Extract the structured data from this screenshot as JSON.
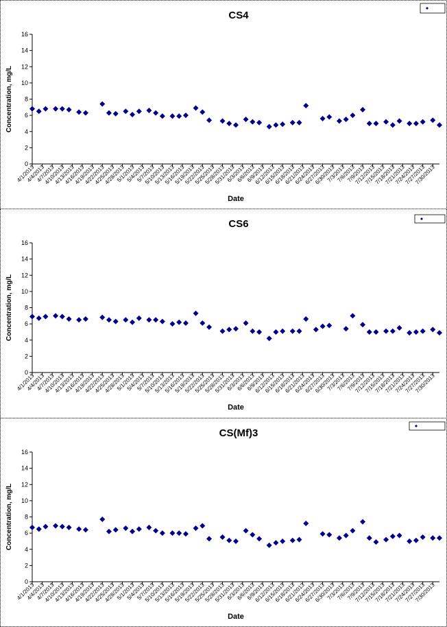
{
  "chart_data": [
    {
      "type": "scatter",
      "title": "CS4",
      "xlabel": "Date",
      "ylabel": "Concentration, mg/L",
      "ylim": [
        0,
        16
      ],
      "yticks": [
        0,
        2,
        4,
        6,
        8,
        10,
        12,
        14,
        16
      ],
      "xlim": [
        "2013-04-01",
        "2013-08-01"
      ],
      "xticks": [
        "4/1/2013",
        "4/4/2013",
        "4/7/2013",
        "4/10/2013",
        "4/13/2013",
        "4/16/2013",
        "4/19/2013",
        "4/22/2013",
        "4/25/2013",
        "4/28/2013",
        "5/1/2013",
        "5/4/2013",
        "5/7/2013",
        "5/10/2013",
        "5/13/2013",
        "5/16/2013",
        "5/19/2013",
        "5/22/2013",
        "5/25/2013",
        "5/28/2013",
        "5/31/2013",
        "6/3/2013",
        "6/6/2013",
        "6/9/2013",
        "6/12/2013",
        "6/15/2013",
        "6/18/2013",
        "6/21/2013",
        "6/24/2013",
        "6/27/2013",
        "6/30/2013",
        "7/3/2013",
        "7/6/2013",
        "7/9/2013",
        "7/12/2013",
        "7/15/2013",
        "7/18/2013",
        "7/21/2013",
        "7/24/2013",
        "7/27/2013",
        "7/30/2013"
      ],
      "legend": {
        "label": "",
        "placement": "top-right"
      },
      "marker_color": "#00008B",
      "grid": false,
      "series": [
        {
          "x": [
            "2013-04-01",
            "2013-04-03",
            "2013-04-05",
            "2013-04-08",
            "2013-04-10",
            "2013-04-12",
            "2013-04-15",
            "2013-04-17",
            "2013-04-22",
            "2013-04-24",
            "2013-04-26",
            "2013-04-29",
            "2013-05-01",
            "2013-05-03",
            "2013-05-06",
            "2013-05-08",
            "2013-05-10",
            "2013-05-13",
            "2013-05-15",
            "2013-05-17",
            "2013-05-20",
            "2013-05-22",
            "2013-05-24",
            "2013-05-28",
            "2013-05-30",
            "2013-06-01",
            "2013-06-04",
            "2013-06-06",
            "2013-06-08",
            "2013-06-11",
            "2013-06-13",
            "2013-06-15",
            "2013-06-18",
            "2013-06-20",
            "2013-06-22",
            "2013-06-27",
            "2013-06-29",
            "2013-07-02",
            "2013-07-04",
            "2013-07-06",
            "2013-07-09",
            "2013-07-11",
            "2013-07-13",
            "2013-07-16",
            "2013-07-18",
            "2013-07-20",
            "2013-07-23",
            "2013-07-25",
            "2013-07-27",
            "2013-07-30",
            "2013-08-01"
          ],
          "y": [
            6.8,
            6.5,
            6.8,
            6.8,
            6.8,
            6.7,
            6.4,
            6.3,
            7.4,
            6.3,
            6.2,
            6.5,
            6.1,
            6.5,
            6.6,
            6.3,
            5.9,
            5.9,
            5.9,
            6.0,
            6.9,
            6.4,
            5.4,
            5.3,
            5.0,
            4.8,
            5.5,
            5.2,
            5.1,
            4.6,
            4.8,
            4.9,
            5.1,
            5.1,
            7.2,
            5.6,
            5.8,
            5.3,
            5.5,
            6.0,
            6.7,
            5.0,
            5.0,
            5.2,
            4.8,
            5.3,
            5.0,
            5.0,
            5.2,
            5.4,
            4.8
          ]
        }
      ]
    },
    {
      "type": "scatter",
      "title": "CS6",
      "xlabel": "Date",
      "ylabel": "Concentration, mg/L",
      "ylim": [
        0,
        16
      ],
      "yticks": [
        0,
        2,
        4,
        6,
        8,
        10,
        12,
        14,
        16
      ],
      "xlim": [
        "2013-04-01",
        "2013-08-01"
      ],
      "xticks": [
        "4/1/2013",
        "4/4/2013",
        "4/7/2013",
        "4/10/2013",
        "4/13/2013",
        "4/16/2013",
        "4/19/2013",
        "4/22/2013",
        "4/25/2013",
        "4/28/2013",
        "5/1/2013",
        "5/4/2013",
        "5/7/2013",
        "5/10/2013",
        "5/13/2013",
        "5/16/2013",
        "5/19/2013",
        "5/22/2013",
        "5/25/2013",
        "5/28/2013",
        "5/31/2013",
        "6/3/2013",
        "6/6/2013",
        "6/9/2013",
        "6/12/2013",
        "6/15/2013",
        "6/18/2013",
        "6/21/2013",
        "6/24/2013",
        "6/27/2013",
        "6/30/2013",
        "7/3/2013",
        "7/6/2013",
        "7/9/2013",
        "7/12/2013",
        "7/15/2013",
        "7/18/2013",
        "7/21/2013",
        "7/24/2013",
        "7/27/2013",
        "7/30/2013"
      ],
      "legend": {
        "label": "",
        "placement": "top-right"
      },
      "marker_color": "#00008B",
      "grid": false,
      "series": [
        {
          "x": [
            "2013-04-01",
            "2013-04-03",
            "2013-04-05",
            "2013-04-08",
            "2013-04-10",
            "2013-04-12",
            "2013-04-15",
            "2013-04-17",
            "2013-04-22",
            "2013-04-24",
            "2013-04-26",
            "2013-04-29",
            "2013-05-01",
            "2013-05-03",
            "2013-05-06",
            "2013-05-08",
            "2013-05-10",
            "2013-05-13",
            "2013-05-15",
            "2013-05-17",
            "2013-05-20",
            "2013-05-22",
            "2013-05-24",
            "2013-05-28",
            "2013-05-30",
            "2013-06-01",
            "2013-06-04",
            "2013-06-06",
            "2013-06-08",
            "2013-06-11",
            "2013-06-13",
            "2013-06-15",
            "2013-06-18",
            "2013-06-20",
            "2013-06-22",
            "2013-06-25",
            "2013-06-27",
            "2013-06-29",
            "2013-07-04",
            "2013-07-06",
            "2013-07-09",
            "2013-07-11",
            "2013-07-13",
            "2013-07-16",
            "2013-07-18",
            "2013-07-20",
            "2013-07-23",
            "2013-07-25",
            "2013-07-27",
            "2013-07-30",
            "2013-08-01"
          ],
          "y": [
            6.9,
            6.7,
            6.9,
            7.0,
            6.9,
            6.6,
            6.5,
            6.6,
            6.8,
            6.5,
            6.3,
            6.5,
            6.2,
            6.7,
            6.5,
            6.5,
            6.3,
            6.0,
            6.2,
            6.1,
            7.3,
            6.1,
            5.6,
            5.1,
            5.3,
            5.4,
            6.1,
            5.1,
            5.0,
            4.2,
            5.0,
            5.1,
            5.1,
            5.1,
            6.6,
            5.3,
            5.7,
            5.8,
            5.4,
            7.0,
            5.9,
            5.0,
            5.0,
            5.1,
            5.1,
            5.5,
            4.9,
            5.0,
            5.1,
            5.3,
            4.9
          ]
        }
      ]
    },
    {
      "type": "scatter",
      "title": "CS(Mf)3",
      "xlabel": "Date",
      "ylabel": "Concentration, mg/L",
      "ylim": [
        0,
        16
      ],
      "yticks": [
        0,
        2,
        4,
        6,
        8,
        10,
        12,
        14,
        16
      ],
      "xlim": [
        "2013-04-01",
        "2013-08-01"
      ],
      "xticks": [
        "4/1/2013",
        "4/4/2013",
        "4/7/2013",
        "4/10/2013",
        "4/13/2013",
        "4/16/2013",
        "4/19/2013",
        "4/22/2013",
        "4/25/2013",
        "4/28/2013",
        "5/1/2013",
        "5/4/2013",
        "5/7/2013",
        "5/10/2013",
        "5/13/2013",
        "5/16/2013",
        "5/19/2013",
        "5/22/2013",
        "5/25/2013",
        "5/28/2013",
        "5/31/2013",
        "6/3/2013",
        "6/6/2013",
        "6/9/2013",
        "6/12/2013",
        "6/15/2013",
        "6/18/2013",
        "6/21/2013",
        "6/24/2013",
        "6/27/2013",
        "6/30/2013",
        "7/3/2013",
        "7/6/2013",
        "7/9/2013",
        "7/12/2013",
        "7/15/2013",
        "7/18/2013",
        "7/21/2013",
        "7/24/2013",
        "7/27/2013",
        "7/30/2013"
      ],
      "legend": {
        "label": "",
        "placement": "top-right"
      },
      "marker_color": "#00008B",
      "grid": false,
      "series": [
        {
          "x": [
            "2013-04-01",
            "2013-04-03",
            "2013-04-05",
            "2013-04-08",
            "2013-04-10",
            "2013-04-12",
            "2013-04-15",
            "2013-04-17",
            "2013-04-22",
            "2013-04-24",
            "2013-04-26",
            "2013-04-29",
            "2013-05-01",
            "2013-05-03",
            "2013-05-06",
            "2013-05-08",
            "2013-05-10",
            "2013-05-13",
            "2013-05-15",
            "2013-05-17",
            "2013-05-20",
            "2013-05-22",
            "2013-05-24",
            "2013-05-28",
            "2013-05-30",
            "2013-06-01",
            "2013-06-04",
            "2013-06-06",
            "2013-06-08",
            "2013-06-11",
            "2013-06-13",
            "2013-06-15",
            "2013-06-18",
            "2013-06-20",
            "2013-06-22",
            "2013-06-27",
            "2013-06-29",
            "2013-07-02",
            "2013-07-04",
            "2013-07-06",
            "2013-07-09",
            "2013-07-11",
            "2013-07-13",
            "2013-07-16",
            "2013-07-18",
            "2013-07-20",
            "2013-07-23",
            "2013-07-25",
            "2013-07-27",
            "2013-07-30",
            "2013-08-01"
          ],
          "y": [
            6.7,
            6.5,
            6.8,
            6.9,
            6.8,
            6.7,
            6.5,
            6.4,
            7.7,
            6.2,
            6.4,
            6.6,
            6.2,
            6.5,
            6.7,
            6.3,
            6.0,
            6.0,
            6.0,
            5.9,
            6.6,
            6.9,
            5.3,
            5.5,
            5.1,
            5.0,
            6.3,
            5.8,
            5.3,
            4.5,
            4.8,
            5.0,
            5.1,
            5.2,
            7.2,
            5.9,
            5.8,
            5.4,
            5.7,
            6.3,
            7.4,
            5.4,
            4.9,
            5.2,
            5.6,
            5.7,
            5.0,
            5.1,
            5.5,
            5.4,
            5.4
          ]
        }
      ]
    }
  ]
}
